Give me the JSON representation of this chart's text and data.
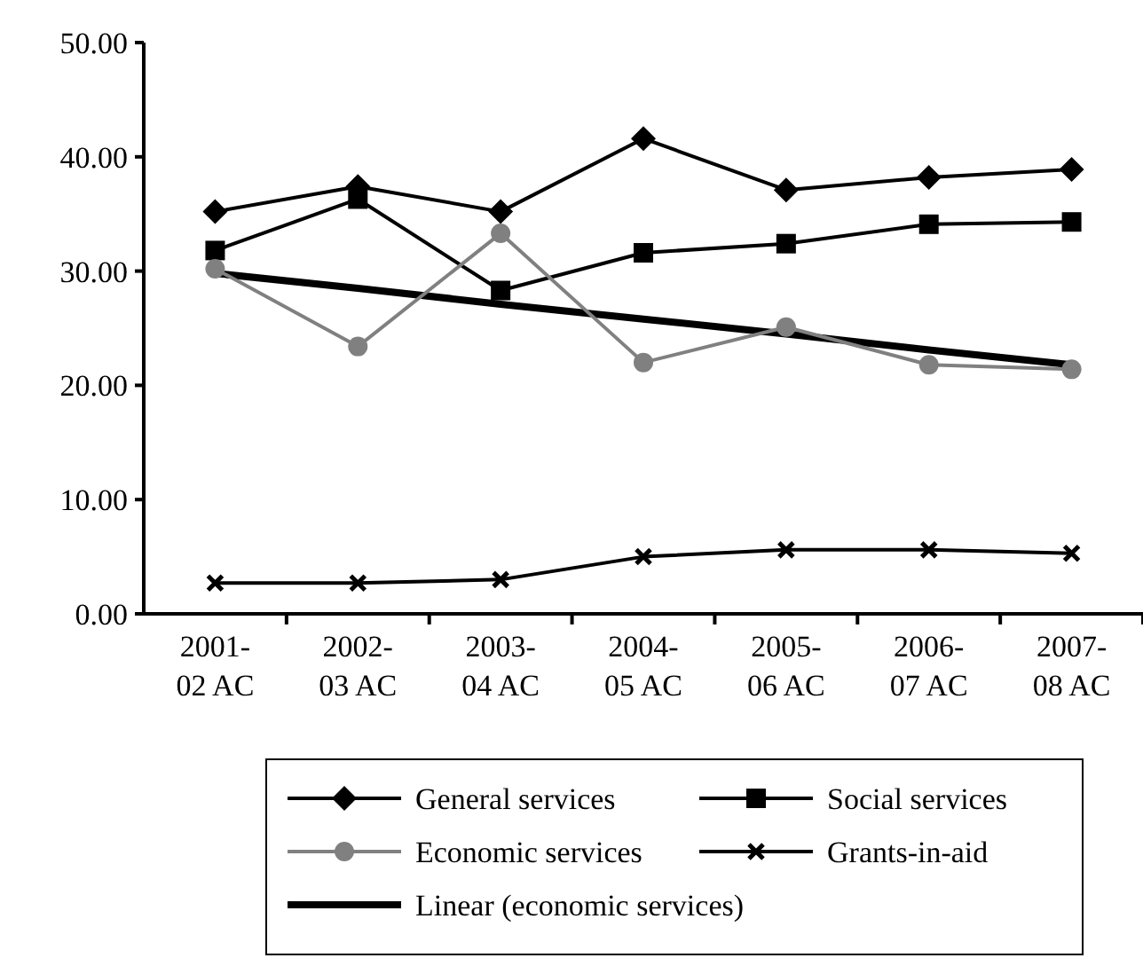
{
  "chart_data": {
    "type": "line",
    "categories": [
      "2001-02 AC",
      "2002-03 AC",
      "2003-04 AC",
      "2004-05 AC",
      "2005-06 AC",
      "2006-07 AC",
      "2007-08 AC"
    ],
    "series": [
      {
        "name": "General services",
        "color": "#000000",
        "marker": "diamond",
        "values": [
          35.2,
          37.4,
          35.2,
          41.6,
          37.1,
          38.2,
          38.9
        ]
      },
      {
        "name": "Social services",
        "color": "#000000",
        "marker": "square",
        "values": [
          31.8,
          36.3,
          28.3,
          31.6,
          32.4,
          34.1,
          34.3
        ]
      },
      {
        "name": "Economic services",
        "color": "#808080",
        "marker": "circle",
        "values": [
          30.2,
          23.4,
          33.3,
          22.0,
          25.1,
          21.8,
          21.4
        ]
      },
      {
        "name": "Grants-in-aid",
        "color": "#000000",
        "marker": "cross",
        "values": [
          2.7,
          2.7,
          3.0,
          5.0,
          5.6,
          5.6,
          5.3
        ]
      },
      {
        "name": "Linear (economic services)",
        "color": "#000000",
        "marker": "none",
        "values": [
          29.8,
          28.5,
          27.1,
          25.8,
          24.5,
          23.1,
          21.8
        ]
      }
    ],
    "ylim": [
      0,
      50
    ],
    "yticks": [
      {
        "value": 0,
        "label": "0.00"
      },
      {
        "value": 10,
        "label": "10.00"
      },
      {
        "value": 20,
        "label": "20.00"
      },
      {
        "value": 30,
        "label": "30.00"
      },
      {
        "value": 40,
        "label": "40.00"
      },
      {
        "value": 50,
        "label": "50.00"
      }
    ],
    "grid": false,
    "legend": "bottom"
  }
}
